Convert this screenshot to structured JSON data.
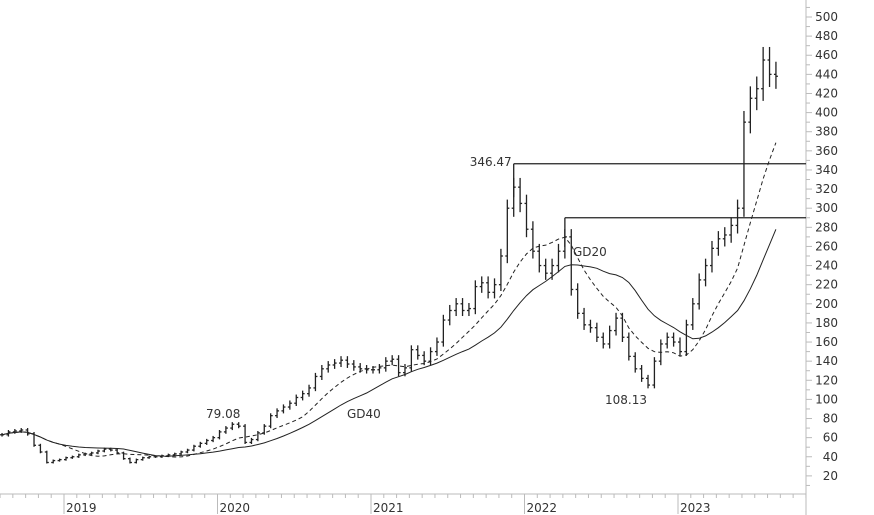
{
  "chart_data": {
    "type": "bar",
    "subtype": "ohlc-bars-with-moving-averages",
    "title": "",
    "xlabel": "",
    "ylabel": "",
    "ylim": [
      0,
      510
    ],
    "y_ticks": [
      20,
      40,
      60,
      80,
      100,
      120,
      140,
      160,
      180,
      200,
      220,
      240,
      260,
      280,
      300,
      320,
      340,
      360,
      380,
      400,
      420,
      440,
      460,
      480,
      500
    ],
    "x_ticks": [
      "2019",
      "2020",
      "2021",
      "2022",
      "2023"
    ],
    "x_start": "2018-08",
    "bar_interval": "half-month",
    "grid": false,
    "y_axis_side": "right",
    "close": [
      63,
      66,
      67,
      68,
      64,
      52,
      45,
      34,
      36,
      37,
      39,
      40,
      42,
      43,
      44,
      46,
      48,
      47,
      44,
      38,
      34,
      37,
      39,
      40,
      40,
      41,
      42,
      43,
      45,
      47,
      51,
      54,
      57,
      60,
      66,
      70,
      74,
      72,
      55,
      58,
      65,
      72,
      83,
      88,
      92,
      96,
      102,
      106,
      112,
      124,
      132,
      136,
      138,
      141,
      137,
      134,
      132,
      131,
      131,
      133,
      140,
      142,
      128,
      133,
      152,
      146,
      140,
      150,
      160,
      183,
      193,
      200,
      193,
      195,
      218,
      222,
      212,
      220,
      250,
      300,
      322,
      305,
      278,
      255,
      240,
      232,
      240,
      255,
      270,
      215,
      190,
      178,
      175,
      165,
      158,
      172,
      185,
      165,
      145,
      132,
      122,
      115,
      140,
      158,
      165,
      160,
      150,
      178,
      200,
      225,
      240,
      258,
      268,
      272,
      282,
      300,
      390,
      415,
      425,
      455,
      440,
      438
    ],
    "moving_averages": [
      {
        "name": "GD20",
        "style": "dashed"
      },
      {
        "name": "GD40",
        "style": "solid"
      }
    ],
    "levels": [
      {
        "label": "346.47",
        "value": 346.47
      },
      {
        "label": "",
        "value": 290
      }
    ],
    "annotations": [
      {
        "text": "79.08",
        "date": "2020-02",
        "value": 79.08
      },
      {
        "text": "108.13",
        "date": "2022-10",
        "value": 108.13
      },
      {
        "text": "GD20",
        "date": "2022-04",
        "value": 255
      },
      {
        "text": "GD40",
        "date": "2020-09",
        "value": 90
      }
    ],
    "colors": {
      "bars": "#222222",
      "axis": "#bbbbbb",
      "text": "#333333"
    }
  }
}
